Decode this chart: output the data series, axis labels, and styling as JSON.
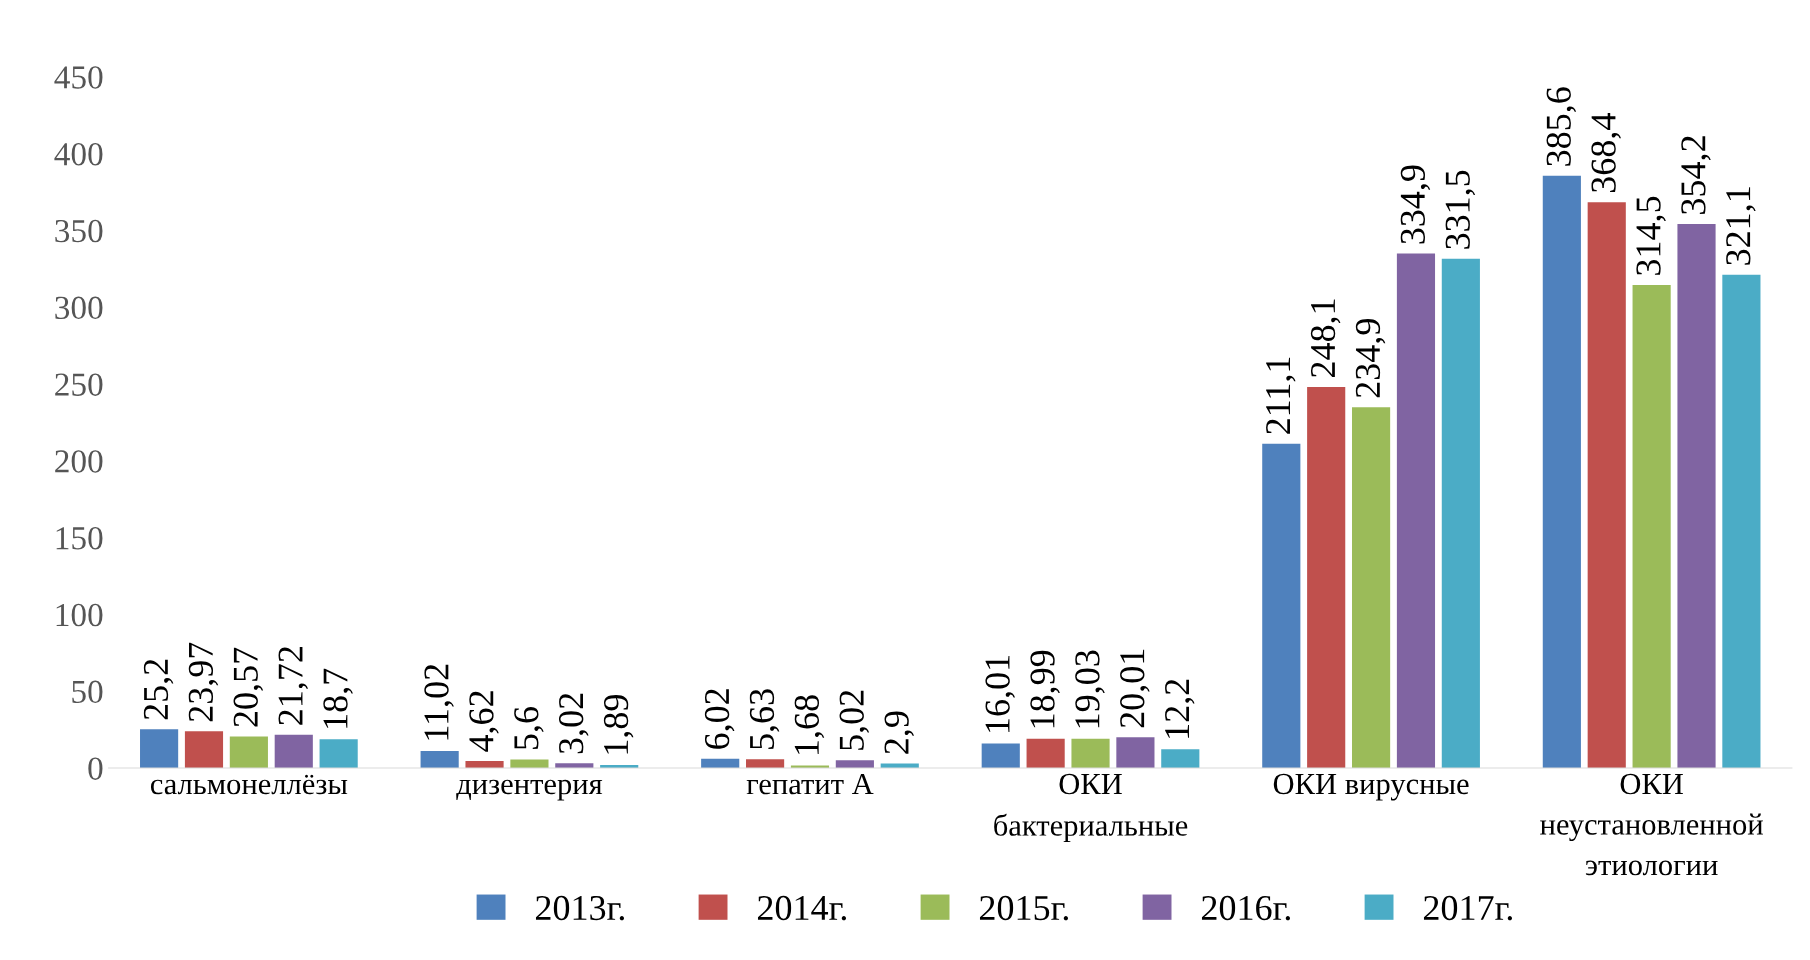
{
  "chart_data": {
    "type": "bar",
    "categories": [
      "сальмонеллёзы",
      "дизентерия",
      "гепатит А",
      "ОКИ\nбактериальные",
      "ОКИ вирусные",
      "ОКИ\nнеустановленной\nэтиологии"
    ],
    "series": [
      {
        "name": "2013г.",
        "color": "#4f81bd",
        "values": [
          25.2,
          11.02,
          6.02,
          16.01,
          211.1,
          385.6
        ],
        "value_labels": [
          "25,2",
          "11,02",
          "6,02",
          "16,01",
          "211,1",
          "385,6"
        ]
      },
      {
        "name": "2014г.",
        "color": "#c0504d",
        "values": [
          23.97,
          4.62,
          5.63,
          18.99,
          248.1,
          368.4
        ],
        "value_labels": [
          "23,97",
          "4,62",
          "5,63",
          "18,99",
          "248,1",
          "368,4"
        ]
      },
      {
        "name": "2015г.",
        "color": "#9bbb59",
        "values": [
          20.57,
          5.6,
          1.68,
          19.03,
          234.9,
          314.5
        ],
        "value_labels": [
          "20,57",
          "5,6",
          "1,68",
          "19,03",
          "234,9",
          "314,5"
        ]
      },
      {
        "name": "2016г.",
        "color": "#8064a2",
        "values": [
          21.72,
          3.02,
          5.02,
          20.01,
          334.9,
          354.2
        ],
        "value_labels": [
          "21,72",
          "3,02",
          "5,02",
          "20,01",
          "334,9",
          "354,2"
        ]
      },
      {
        "name": "2017г.",
        "color": "#4bacc6",
        "values": [
          18.7,
          1.89,
          2.9,
          12.2,
          331.5,
          321.1
        ],
        "value_labels": [
          "18,7",
          "1,89",
          "2,9",
          "12,2",
          "331,5",
          "321,1"
        ]
      }
    ],
    "ylim": [
      0,
      450
    ],
    "yticks": [
      0,
      50,
      100,
      150,
      200,
      250,
      300,
      350,
      400,
      450
    ],
    "grid": false,
    "legend": "bottom"
  }
}
